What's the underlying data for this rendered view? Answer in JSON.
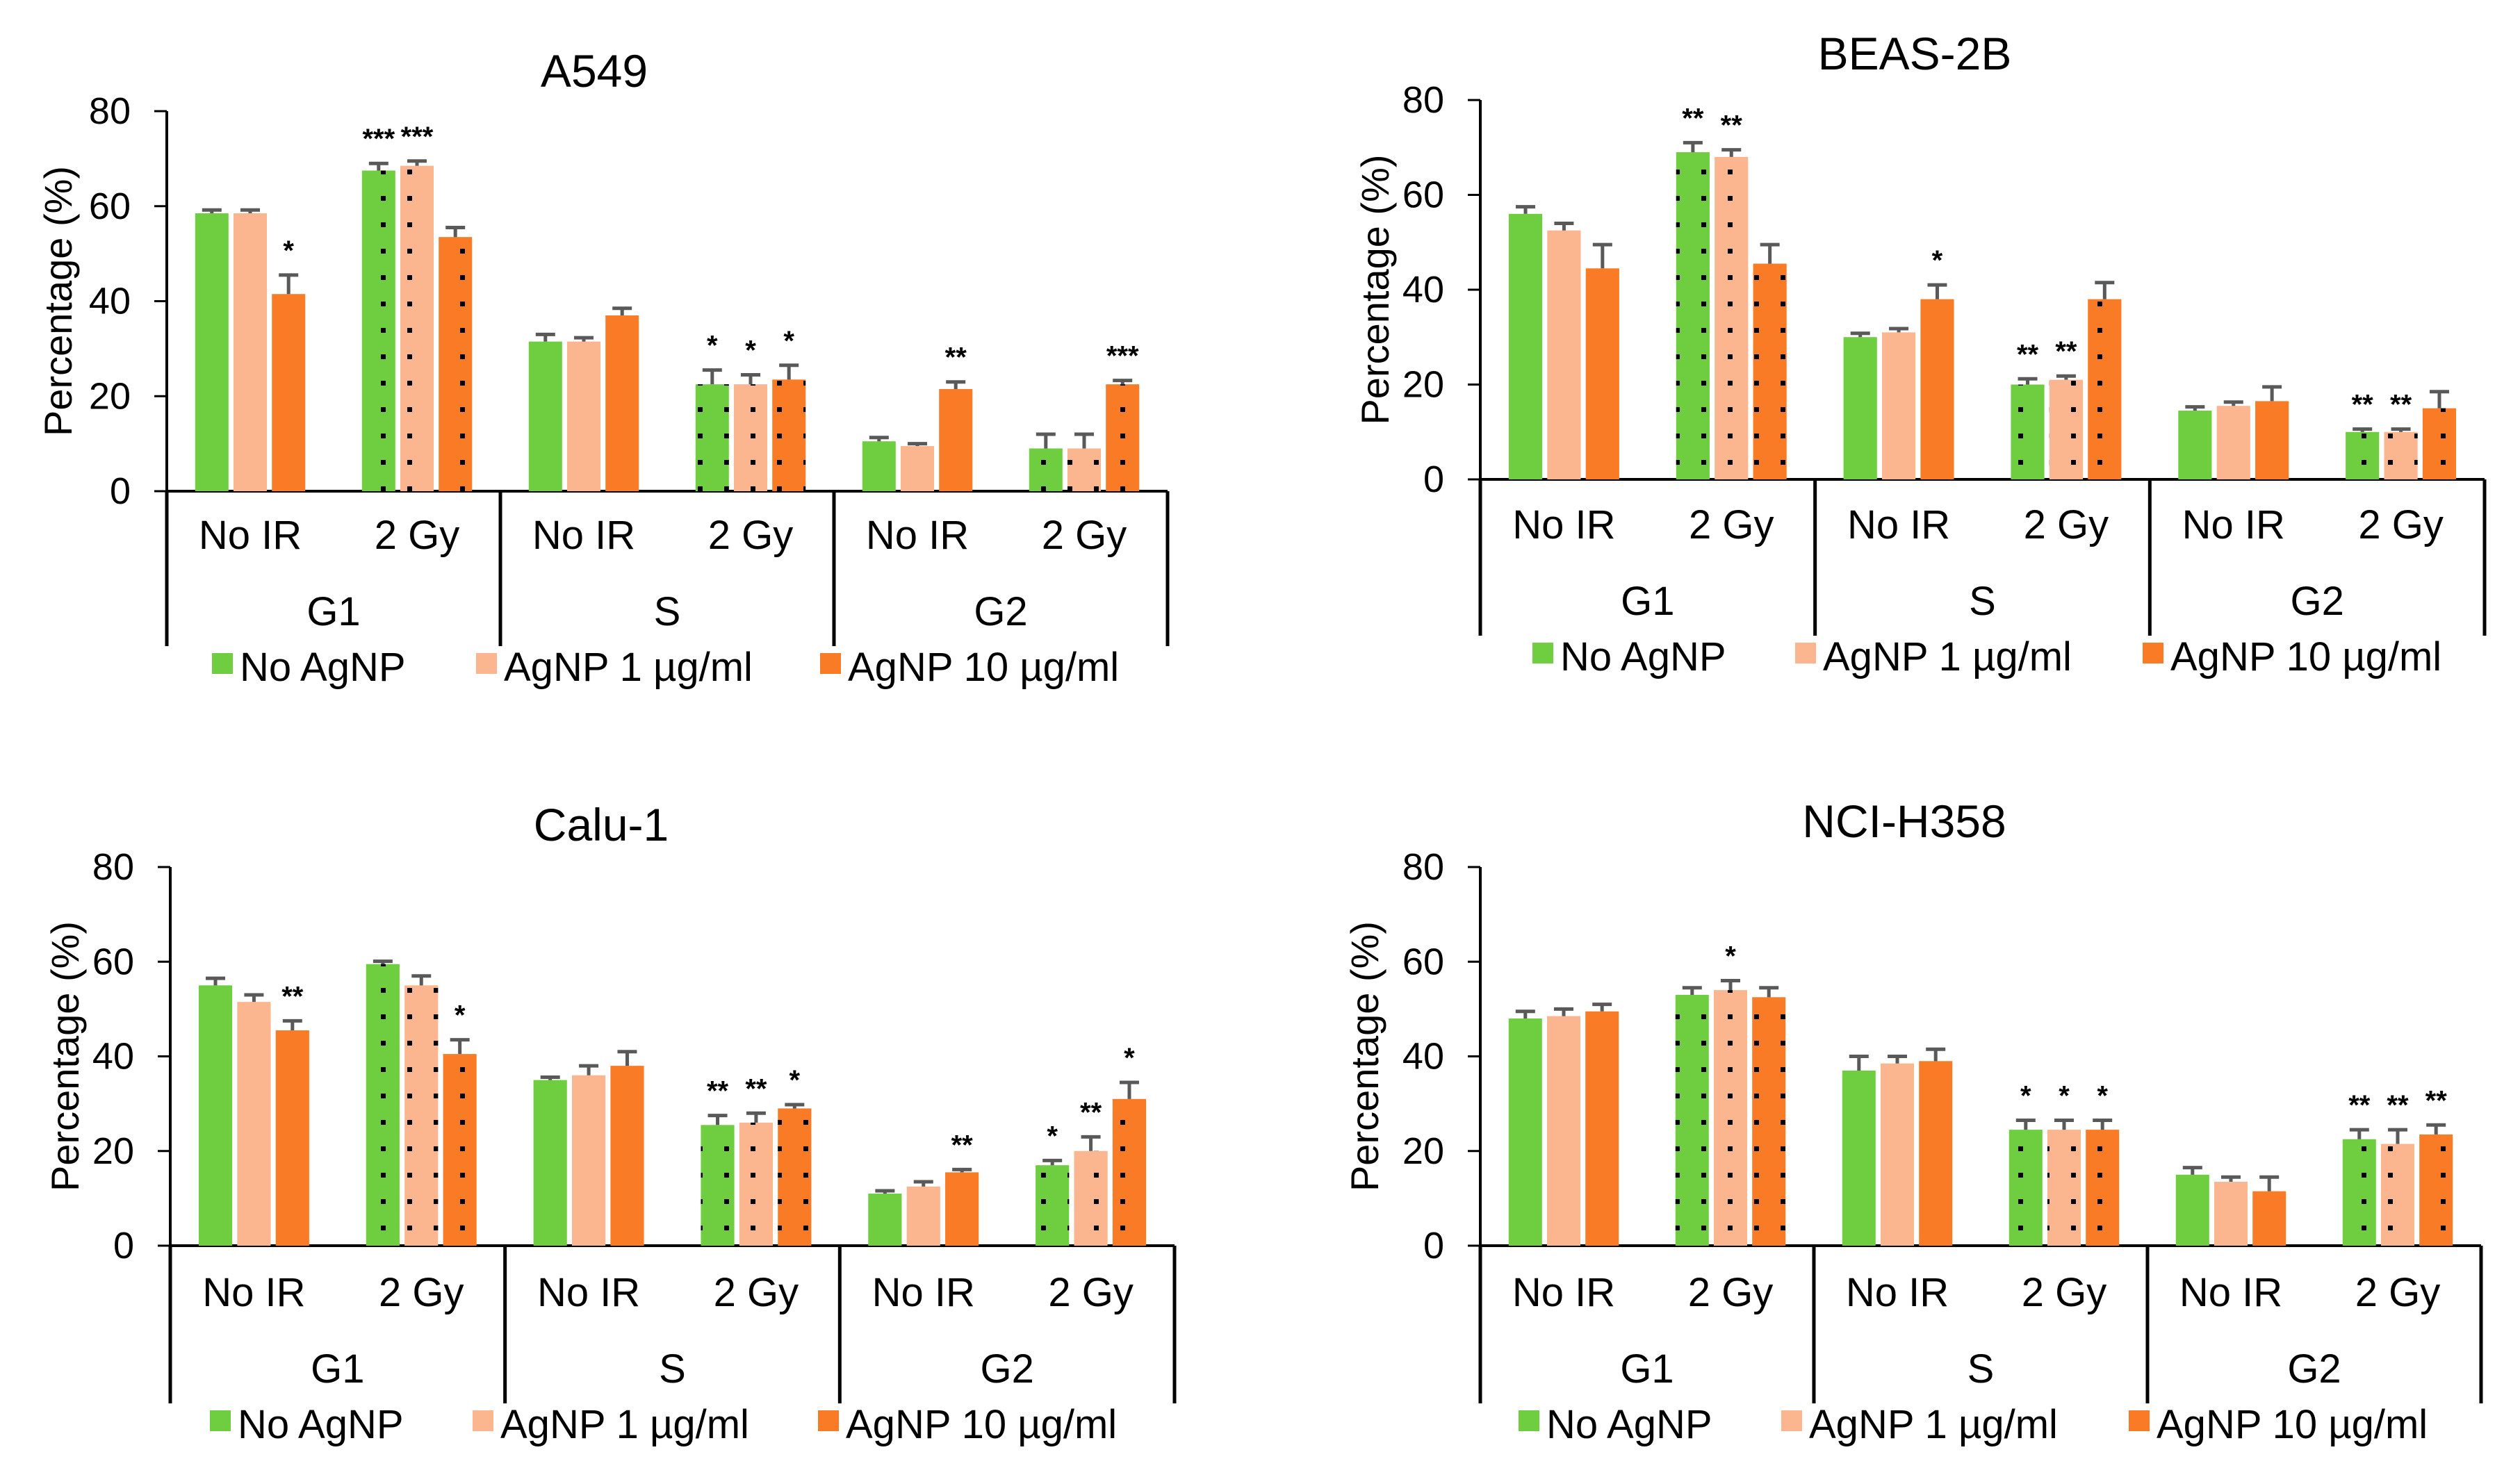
{
  "colors": {
    "no_agnp": "#6fce3f",
    "agnp_1": "#fbb58f",
    "agnp_10": "#fa7b26",
    "error_bar": "#595959",
    "axis": "#000000"
  },
  "legend_labels": [
    "No AgNP",
    "AgNP 1 µg/ml",
    "AgNP 10 µg/ml"
  ],
  "chart_data": [
    {
      "type": "bar",
      "title": "A549",
      "ylabel": "Percentage (%)",
      "ylim": [
        0,
        80
      ],
      "yticks": [
        "0",
        "20",
        "40",
        "60",
        "80"
      ],
      "groups": [
        "G1",
        "S",
        "G2"
      ],
      "conditions": [
        "No IR",
        "2 Gy",
        "No IR",
        "2 Gy",
        "No IR",
        "2 Gy"
      ],
      "series": [
        {
          "name": "No AgNP",
          "values": [
            58.5,
            67.5,
            31.5,
            22.5,
            10.5,
            9.0
          ],
          "errors": [
            0.7,
            1.5,
            1.5,
            3.0,
            0.8,
            3.0
          ],
          "stars": [
            "",
            "***",
            "",
            "*",
            "",
            ""
          ]
        },
        {
          "name": "AgNP 1 µg/ml",
          "values": [
            58.5,
            68.5,
            31.5,
            22.5,
            9.5,
            9.0
          ],
          "errors": [
            0.7,
            1.0,
            0.8,
            2.0,
            0.5,
            3.0
          ],
          "stars": [
            "",
            "***",
            "",
            "*",
            "",
            ""
          ]
        },
        {
          "name": "AgNP 10 µg/ml",
          "values": [
            41.5,
            53.5,
            37.0,
            23.5,
            21.5,
            22.5
          ],
          "errors": [
            4.0,
            2.0,
            1.5,
            3.0,
            1.5,
            0.8
          ],
          "stars": [
            "*",
            "",
            "",
            "*",
            "**",
            "***"
          ]
        }
      ]
    },
    {
      "type": "bar",
      "title": "BEAS-2B",
      "ylabel": "Percentage (%)",
      "ylim": [
        0,
        80
      ],
      "yticks": [
        "0",
        "20",
        "40",
        "60",
        "80"
      ],
      "groups": [
        "G1",
        "S",
        "G2"
      ],
      "conditions": [
        "No IR",
        "2 Gy",
        "No IR",
        "2 Gy",
        "No IR",
        "2 Gy"
      ],
      "series": [
        {
          "name": "No AgNP",
          "values": [
            56.0,
            69.0,
            30.0,
            20.0,
            14.5,
            10.0
          ],
          "errors": [
            1.5,
            2.0,
            0.8,
            1.2,
            0.8,
            0.6
          ],
          "stars": [
            "",
            "**",
            "",
            "**",
            "",
            "**"
          ]
        },
        {
          "name": "AgNP 1 µg/ml",
          "values": [
            52.5,
            68.0,
            31.0,
            21.0,
            15.5,
            10.0
          ],
          "errors": [
            1.5,
            1.5,
            0.8,
            0.8,
            0.8,
            0.6
          ],
          "stars": [
            "",
            "**",
            "",
            "**",
            "",
            "**"
          ]
        },
        {
          "name": "AgNP 10 µg/ml",
          "values": [
            44.5,
            45.5,
            38.0,
            38.0,
            16.5,
            15.0
          ],
          "errors": [
            5.0,
            4.0,
            3.0,
            3.5,
            3.0,
            3.5
          ],
          "stars": [
            "",
            "",
            "*",
            "",
            "",
            ""
          ]
        }
      ]
    },
    {
      "type": "bar",
      "title": "Calu-1",
      "ylabel": "Percentage (%)",
      "ylim": [
        0,
        80
      ],
      "yticks": [
        "0",
        "20",
        "40",
        "60",
        "80"
      ],
      "groups": [
        "G1",
        "S",
        "G2"
      ],
      "conditions": [
        "No IR",
        "2 Gy",
        "No IR",
        "2 Gy",
        "No IR",
        "2 Gy"
      ],
      "series": [
        {
          "name": "No AgNP",
          "values": [
            55.0,
            59.5,
            35.0,
            25.5,
            11.0,
            17.0
          ],
          "errors": [
            1.5,
            0.6,
            0.6,
            2.0,
            0.6,
            1.0
          ],
          "stars": [
            "",
            "",
            "",
            "**",
            "",
            "*"
          ]
        },
        {
          "name": "AgNP 1 µg/ml",
          "values": [
            51.5,
            55.0,
            36.0,
            26.0,
            12.5,
            20.0
          ],
          "errors": [
            1.5,
            2.0,
            2.0,
            2.0,
            1.0,
            3.0
          ],
          "stars": [
            "",
            "",
            "",
            "**",
            "",
            "**"
          ]
        },
        {
          "name": "AgNP 10 µg/ml",
          "values": [
            45.5,
            40.5,
            38.0,
            29.0,
            15.5,
            31.0
          ],
          "errors": [
            2.0,
            3.0,
            3.0,
            0.8,
            0.6,
            3.5
          ],
          "stars": [
            "**",
            "*",
            "",
            "*",
            "**",
            "*"
          ]
        }
      ]
    },
    {
      "type": "bar",
      "title": "NCI-H358",
      "ylabel": "Percentage (%)",
      "ylim": [
        0,
        80
      ],
      "yticks": [
        "0",
        "20",
        "40",
        "60",
        "80"
      ],
      "groups": [
        "G1",
        "S",
        "G2"
      ],
      "conditions": [
        "No IR",
        "2 Gy",
        "No IR",
        "2 Gy",
        "No IR",
        "2 Gy"
      ],
      "series": [
        {
          "name": "No AgNP",
          "values": [
            48.0,
            53.0,
            37.0,
            24.5,
            15.0,
            22.5
          ],
          "errors": [
            1.5,
            1.5,
            3.0,
            2.0,
            1.5,
            2.0
          ],
          "stars": [
            "",
            "",
            "",
            "*",
            "",
            "**"
          ]
        },
        {
          "name": "AgNP 1 µg/ml",
          "values": [
            48.5,
            54.0,
            38.5,
            24.5,
            13.5,
            21.5
          ],
          "errors": [
            1.5,
            2.0,
            1.5,
            2.0,
            1.0,
            3.0
          ],
          "stars": [
            "",
            "*",
            "",
            "*",
            "",
            "**"
          ]
        },
        {
          "name": "AgNP 10 µg/ml",
          "values": [
            49.5,
            52.5,
            39.0,
            24.5,
            11.5,
            23.5
          ],
          "errors": [
            1.5,
            2.0,
            2.5,
            2.0,
            3.0,
            2.0
          ],
          "stars": [
            "",
            "",
            "",
            "*",
            "",
            "**"
          ]
        }
      ]
    }
  ]
}
